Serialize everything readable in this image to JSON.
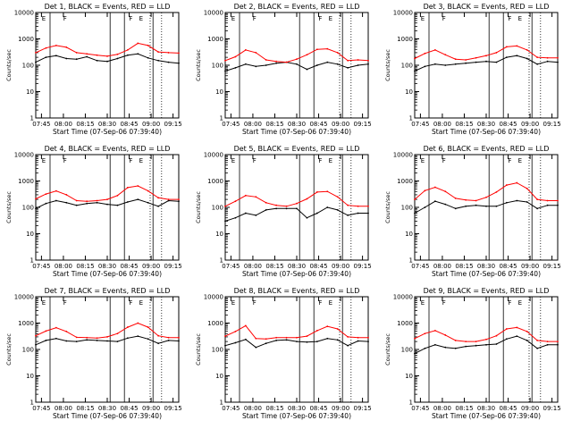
{
  "chart_data": [
    {
      "type": "line",
      "title": "Det 1, BLACK = Events, RED = LLD",
      "xlabel": "Start Time (07-Sep-06 07:39:40)",
      "ylabel": "Counts/sec",
      "xlim": [
        0,
        100
      ],
      "ylim_log": [
        1,
        10000
      ],
      "y_ticks": [
        "1",
        "10",
        "100",
        "1000",
        "10000"
      ],
      "x_ticks": [
        "07:45",
        "08:00",
        "08:15",
        "08:30",
        "08:45",
        "09:00",
        "09:15"
      ],
      "markers": [
        "E",
        "F",
        "F",
        "E"
      ],
      "series": [
        {
          "name": "Events",
          "color": "#000000",
          "values": [
            130,
            200,
            230,
            180,
            170,
            210,
            150,
            140,
            180,
            240,
            270,
            190,
            150,
            130,
            120
          ]
        },
        {
          "name": "LLD",
          "color": "#ff0000",
          "values": [
            300,
            450,
            560,
            480,
            300,
            270,
            240,
            220,
            260,
            380,
            680,
            560,
            320,
            300,
            290
          ]
        }
      ]
    },
    {
      "type": "line",
      "title": "Det 2, BLACK = Events, RED = LLD",
      "xlabel": "Start Time (07-Sep-06 07:39:40)",
      "ylabel": "Counts/sec",
      "xlim": [
        0,
        100
      ],
      "ylim_log": [
        1,
        10000
      ],
      "y_ticks": [
        "1",
        "10",
        "100",
        "1000",
        "10000"
      ],
      "x_ticks": [
        "07:45",
        "08:00",
        "08:15",
        "08:30",
        "08:45",
        "09:00",
        "09:15"
      ],
      "markers": [
        "E",
        "F",
        "F",
        "E"
      ],
      "series": [
        {
          "name": "Events",
          "color": "#000000",
          "values": [
            60,
            80,
            110,
            90,
            100,
            120,
            130,
            110,
            70,
            100,
            130,
            110,
            80,
            100,
            110
          ]
        },
        {
          "name": "LLD",
          "color": "#ff0000",
          "values": [
            150,
            210,
            380,
            300,
            160,
            140,
            130,
            170,
            250,
            400,
            420,
            300,
            150,
            160,
            150
          ]
        }
      ]
    },
    {
      "type": "line",
      "title": "Det 3, BLACK = Events, RED = LLD",
      "xlabel": "Start Time (07-Sep-06 07:39:40)",
      "ylabel": "Counts/sec",
      "xlim": [
        0,
        100
      ],
      "ylim_log": [
        1,
        10000
      ],
      "y_ticks": [
        "1",
        "10",
        "100",
        "1000",
        "10000"
      ],
      "x_ticks": [
        "07:45",
        "08:00",
        "08:15",
        "08:30",
        "08:45",
        "09:00",
        "09:15"
      ],
      "markers": [
        "E",
        "F",
        "F",
        "E"
      ],
      "series": [
        {
          "name": "Events",
          "color": "#000000",
          "values": [
            60,
            90,
            110,
            100,
            110,
            120,
            130,
            140,
            130,
            200,
            230,
            180,
            110,
            140,
            130
          ]
        },
        {
          "name": "LLD",
          "color": "#ff0000",
          "values": [
            180,
            280,
            380,
            250,
            170,
            160,
            190,
            230,
            300,
            500,
            540,
            380,
            200,
            190,
            190
          ]
        }
      ]
    },
    {
      "type": "line",
      "title": "Det 4, BLACK = Events, RED = LLD",
      "xlabel": "Start Time (07-Sep-06 07:39:40)",
      "ylabel": "Counts/sec",
      "xlim": [
        0,
        100
      ],
      "ylim_log": [
        1,
        10000
      ],
      "y_ticks": [
        "1",
        "10",
        "100",
        "1000",
        "10000"
      ],
      "x_ticks": [
        "07:45",
        "08:00",
        "08:15",
        "08:30",
        "08:45",
        "09:00",
        "09:15"
      ],
      "markers": [
        "E",
        "F",
        "F",
        "E"
      ],
      "series": [
        {
          "name": "Events",
          "color": "#000000",
          "values": [
            90,
            140,
            180,
            150,
            120,
            140,
            150,
            130,
            120,
            160,
            200,
            150,
            110,
            180,
            170
          ]
        },
        {
          "name": "LLD",
          "color": "#ff0000",
          "values": [
            210,
            320,
            420,
            300,
            180,
            170,
            180,
            200,
            280,
            560,
            650,
            420,
            230,
            200,
            200
          ]
        }
      ]
    },
    {
      "type": "line",
      "title": "Det 5, BLACK = Events, RED = LLD",
      "xlabel": "Start Time (07-Sep-06 07:39:40)",
      "ylabel": "Counts/sec",
      "xlim": [
        0,
        100
      ],
      "ylim_log": [
        1,
        10000
      ],
      "y_ticks": [
        "1",
        "10",
        "100",
        "1000",
        "10000"
      ],
      "x_ticks": [
        "07:45",
        "08:00",
        "08:15",
        "08:30",
        "08:45",
        "09:00",
        "09:15"
      ],
      "markers": [
        "E",
        "F",
        "F",
        "E"
      ],
      "series": [
        {
          "name": "Events",
          "color": "#000000",
          "values": [
            30,
            40,
            60,
            50,
            80,
            90,
            90,
            90,
            40,
            60,
            100,
            80,
            50,
            60,
            60
          ]
        },
        {
          "name": "LLD",
          "color": "#ff0000",
          "values": [
            110,
            170,
            280,
            250,
            150,
            120,
            110,
            140,
            210,
            380,
            400,
            250,
            120,
            110,
            110
          ]
        }
      ]
    },
    {
      "type": "line",
      "title": "Det 6, BLACK = Events, RED = LLD",
      "xlabel": "Start Time (07-Sep-06 07:39:40)",
      "ylabel": "Counts/sec",
      "xlim": [
        0,
        100
      ],
      "ylim_log": [
        1,
        10000
      ],
      "y_ticks": [
        "1",
        "10",
        "100",
        "1000",
        "10000"
      ],
      "x_ticks": [
        "07:45",
        "08:00",
        "08:15",
        "08:30",
        "08:45",
        "09:00",
        "09:15"
      ],
      "markers": [
        "E",
        "F",
        "F",
        "E"
      ],
      "series": [
        {
          "name": "Events",
          "color": "#000000",
          "values": [
            60,
            100,
            170,
            130,
            90,
            110,
            120,
            110,
            110,
            150,
            180,
            160,
            90,
            120,
            120
          ]
        },
        {
          "name": "LLD",
          "color": "#ff0000",
          "values": [
            200,
            430,
            580,
            400,
            220,
            190,
            180,
            240,
            380,
            700,
            850,
            520,
            200,
            180,
            180
          ]
        }
      ]
    },
    {
      "type": "line",
      "title": "Det 7, BLACK = Events, RED = LLD",
      "xlabel": "Start Time (07-Sep-06 07:39:40)",
      "ylabel": "Counts/sec",
      "xlim": [
        0,
        100
      ],
      "ylim_log": [
        1,
        10000
      ],
      "y_ticks": [
        "1",
        "10",
        "100",
        "1000",
        "10000"
      ],
      "x_ticks": [
        "07:45",
        "08:00",
        "08:15",
        "08:30",
        "08:45",
        "09:00",
        "09:15"
      ],
      "markers": [
        "E",
        "F",
        "F",
        "E"
      ],
      "series": [
        {
          "name": "Events",
          "color": "#000000",
          "values": [
            150,
            220,
            260,
            210,
            200,
            230,
            220,
            210,
            200,
            270,
            320,
            250,
            170,
            220,
            210
          ]
        },
        {
          "name": "LLD",
          "color": "#ff0000",
          "values": [
            330,
            500,
            670,
            480,
            290,
            280,
            270,
            300,
            400,
            700,
            1000,
            700,
            330,
            280,
            280
          ]
        }
      ]
    },
    {
      "type": "line",
      "title": "Det 8, BLACK = Events, RED = LLD",
      "xlabel": "Start Time (07-Sep-06 07:39:40)",
      "ylabel": "Counts/sec",
      "xlim": [
        0,
        100
      ],
      "ylim_log": [
        1,
        10000
      ],
      "y_ticks": [
        "1",
        "10",
        "100",
        "1000",
        "10000"
      ],
      "x_ticks": [
        "07:45",
        "08:00",
        "08:15",
        "08:30",
        "08:45",
        "09:00",
        "09:15"
      ],
      "markers": [
        "E",
        "F",
        "F",
        "E"
      ],
      "series": [
        {
          "name": "Events",
          "color": "#000000",
          "values": [
            140,
            180,
            240,
            120,
            170,
            220,
            230,
            200,
            190,
            200,
            260,
            230,
            140,
            210,
            200
          ]
        },
        {
          "name": "LLD",
          "color": "#ff0000",
          "values": [
            320,
            480,
            800,
            260,
            250,
            280,
            280,
            280,
            320,
            520,
            750,
            600,
            300,
            280,
            280
          ]
        }
      ]
    },
    {
      "type": "line",
      "title": "Det 9, BLACK = Events, RED = LLD",
      "xlabel": "Start Time (07-Sep-06 07:39:40)",
      "ylabel": "Counts/sec",
      "xlim": [
        0,
        100
      ],
      "ylim_log": [
        1,
        10000
      ],
      "y_ticks": [
        "1",
        "10",
        "100",
        "1000",
        "10000"
      ],
      "x_ticks": [
        "07:45",
        "08:00",
        "08:15",
        "08:30",
        "08:45",
        "09:00",
        "09:15"
      ],
      "markers": [
        "E",
        "F",
        "F",
        "E"
      ],
      "series": [
        {
          "name": "Events",
          "color": "#000000",
          "values": [
            70,
            110,
            150,
            120,
            110,
            130,
            140,
            150,
            160,
            250,
            320,
            220,
            110,
            150,
            150
          ]
        },
        {
          "name": "LLD",
          "color": "#ff0000",
          "values": [
            260,
            400,
            520,
            350,
            220,
            200,
            200,
            240,
            330,
            600,
            680,
            480,
            220,
            200,
            200
          ]
        }
      ]
    }
  ]
}
